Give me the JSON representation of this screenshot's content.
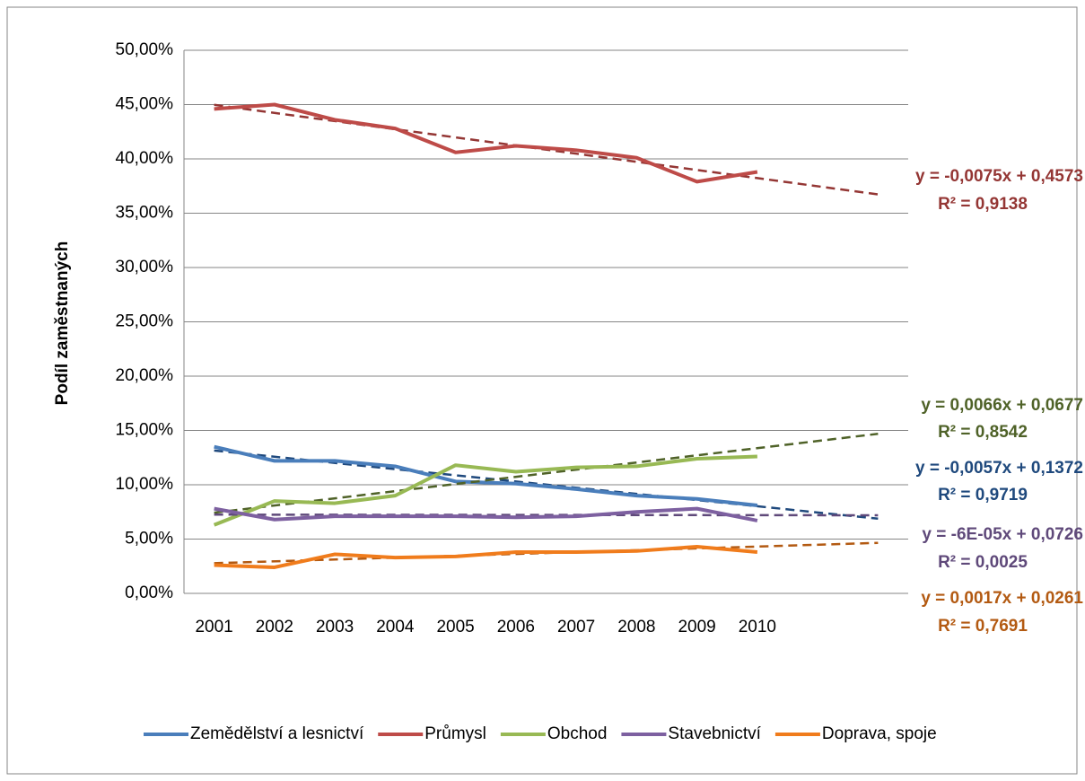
{
  "chart_data": {
    "type": "line",
    "y_axis_label": "Podíl zaměstnaných",
    "categories": [
      "2001",
      "2002",
      "2003",
      "2004",
      "2005",
      "2006",
      "2007",
      "2008",
      "2009",
      "2010",
      null,
      null
    ],
    "ylim": [
      0,
      50
    ],
    "yticks": [
      {
        "value": 0,
        "label": "0,00%"
      },
      {
        "value": 5,
        "label": "5,00%"
      },
      {
        "value": 10,
        "label": "10,00%"
      },
      {
        "value": 15,
        "label": "15,00%"
      },
      {
        "value": 20,
        "label": "20,00%"
      },
      {
        "value": 25,
        "label": "25,00%"
      },
      {
        "value": 30,
        "label": "30,00%"
      },
      {
        "value": 35,
        "label": "35,00%"
      },
      {
        "value": 40,
        "label": "40,00%"
      },
      {
        "value": 45,
        "label": "45,00%"
      },
      {
        "value": 50,
        "label": "50,00%"
      }
    ],
    "grid": true,
    "legend": "bottom",
    "series": [
      {
        "name": "Zemědělství a lesnictví",
        "color": "#4a7ebb",
        "values": [
          13.5,
          12.2,
          12.2,
          11.7,
          10.3,
          10.1,
          9.6,
          9.0,
          8.7,
          8.1,
          null,
          null
        ],
        "trend": {
          "color": "#1f497d",
          "start": 13.15,
          "end": 6.88,
          "equation": "y = -0,0057x + 0,1372",
          "r2": "R² = 0,9719"
        }
      },
      {
        "name": "Průmysl",
        "color": "#be4b48",
        "values": [
          44.6,
          45.0,
          43.6,
          42.8,
          40.6,
          41.2,
          40.8,
          40.1,
          37.9,
          38.8,
          null,
          null
        ],
        "trend": {
          "color": "#943634",
          "start": 44.98,
          "end": 36.73,
          "equation": "y = -0,0075x + 0,4573",
          "r2": "R² = 0,9138"
        }
      },
      {
        "name": "Obchod",
        "color": "#98b954",
        "values": [
          6.3,
          8.5,
          8.3,
          9.0,
          11.8,
          11.2,
          11.6,
          11.7,
          12.4,
          12.6,
          null,
          null
        ],
        "trend": {
          "color": "#4f6228",
          "start": 7.43,
          "end": 14.69,
          "equation": "y = 0,0066x + 0,0677",
          "r2": "R² = 0,8542"
        }
      },
      {
        "name": "Stavebnictví",
        "color": "#7d60a0",
        "values": [
          7.8,
          6.8,
          7.1,
          7.1,
          7.1,
          7.0,
          7.1,
          7.5,
          7.8,
          6.7,
          null,
          null
        ],
        "trend": {
          "color": "#5f497a",
          "start": 7.25,
          "end": 7.19,
          "equation": "y = -6E-05x + 0,0726",
          "r2": "R² = 0,0025"
        }
      },
      {
        "name": "Doprava, spoje",
        "color": "#f07c1c",
        "values": [
          2.6,
          2.4,
          3.6,
          3.3,
          3.4,
          3.8,
          3.8,
          3.9,
          4.3,
          3.8,
          null,
          null
        ],
        "trend": {
          "color": "#b35a12",
          "start": 2.78,
          "end": 4.65,
          "equation": "y = 0,0017x + 0,0261",
          "r2": "R² = 0,7691"
        }
      }
    ]
  }
}
